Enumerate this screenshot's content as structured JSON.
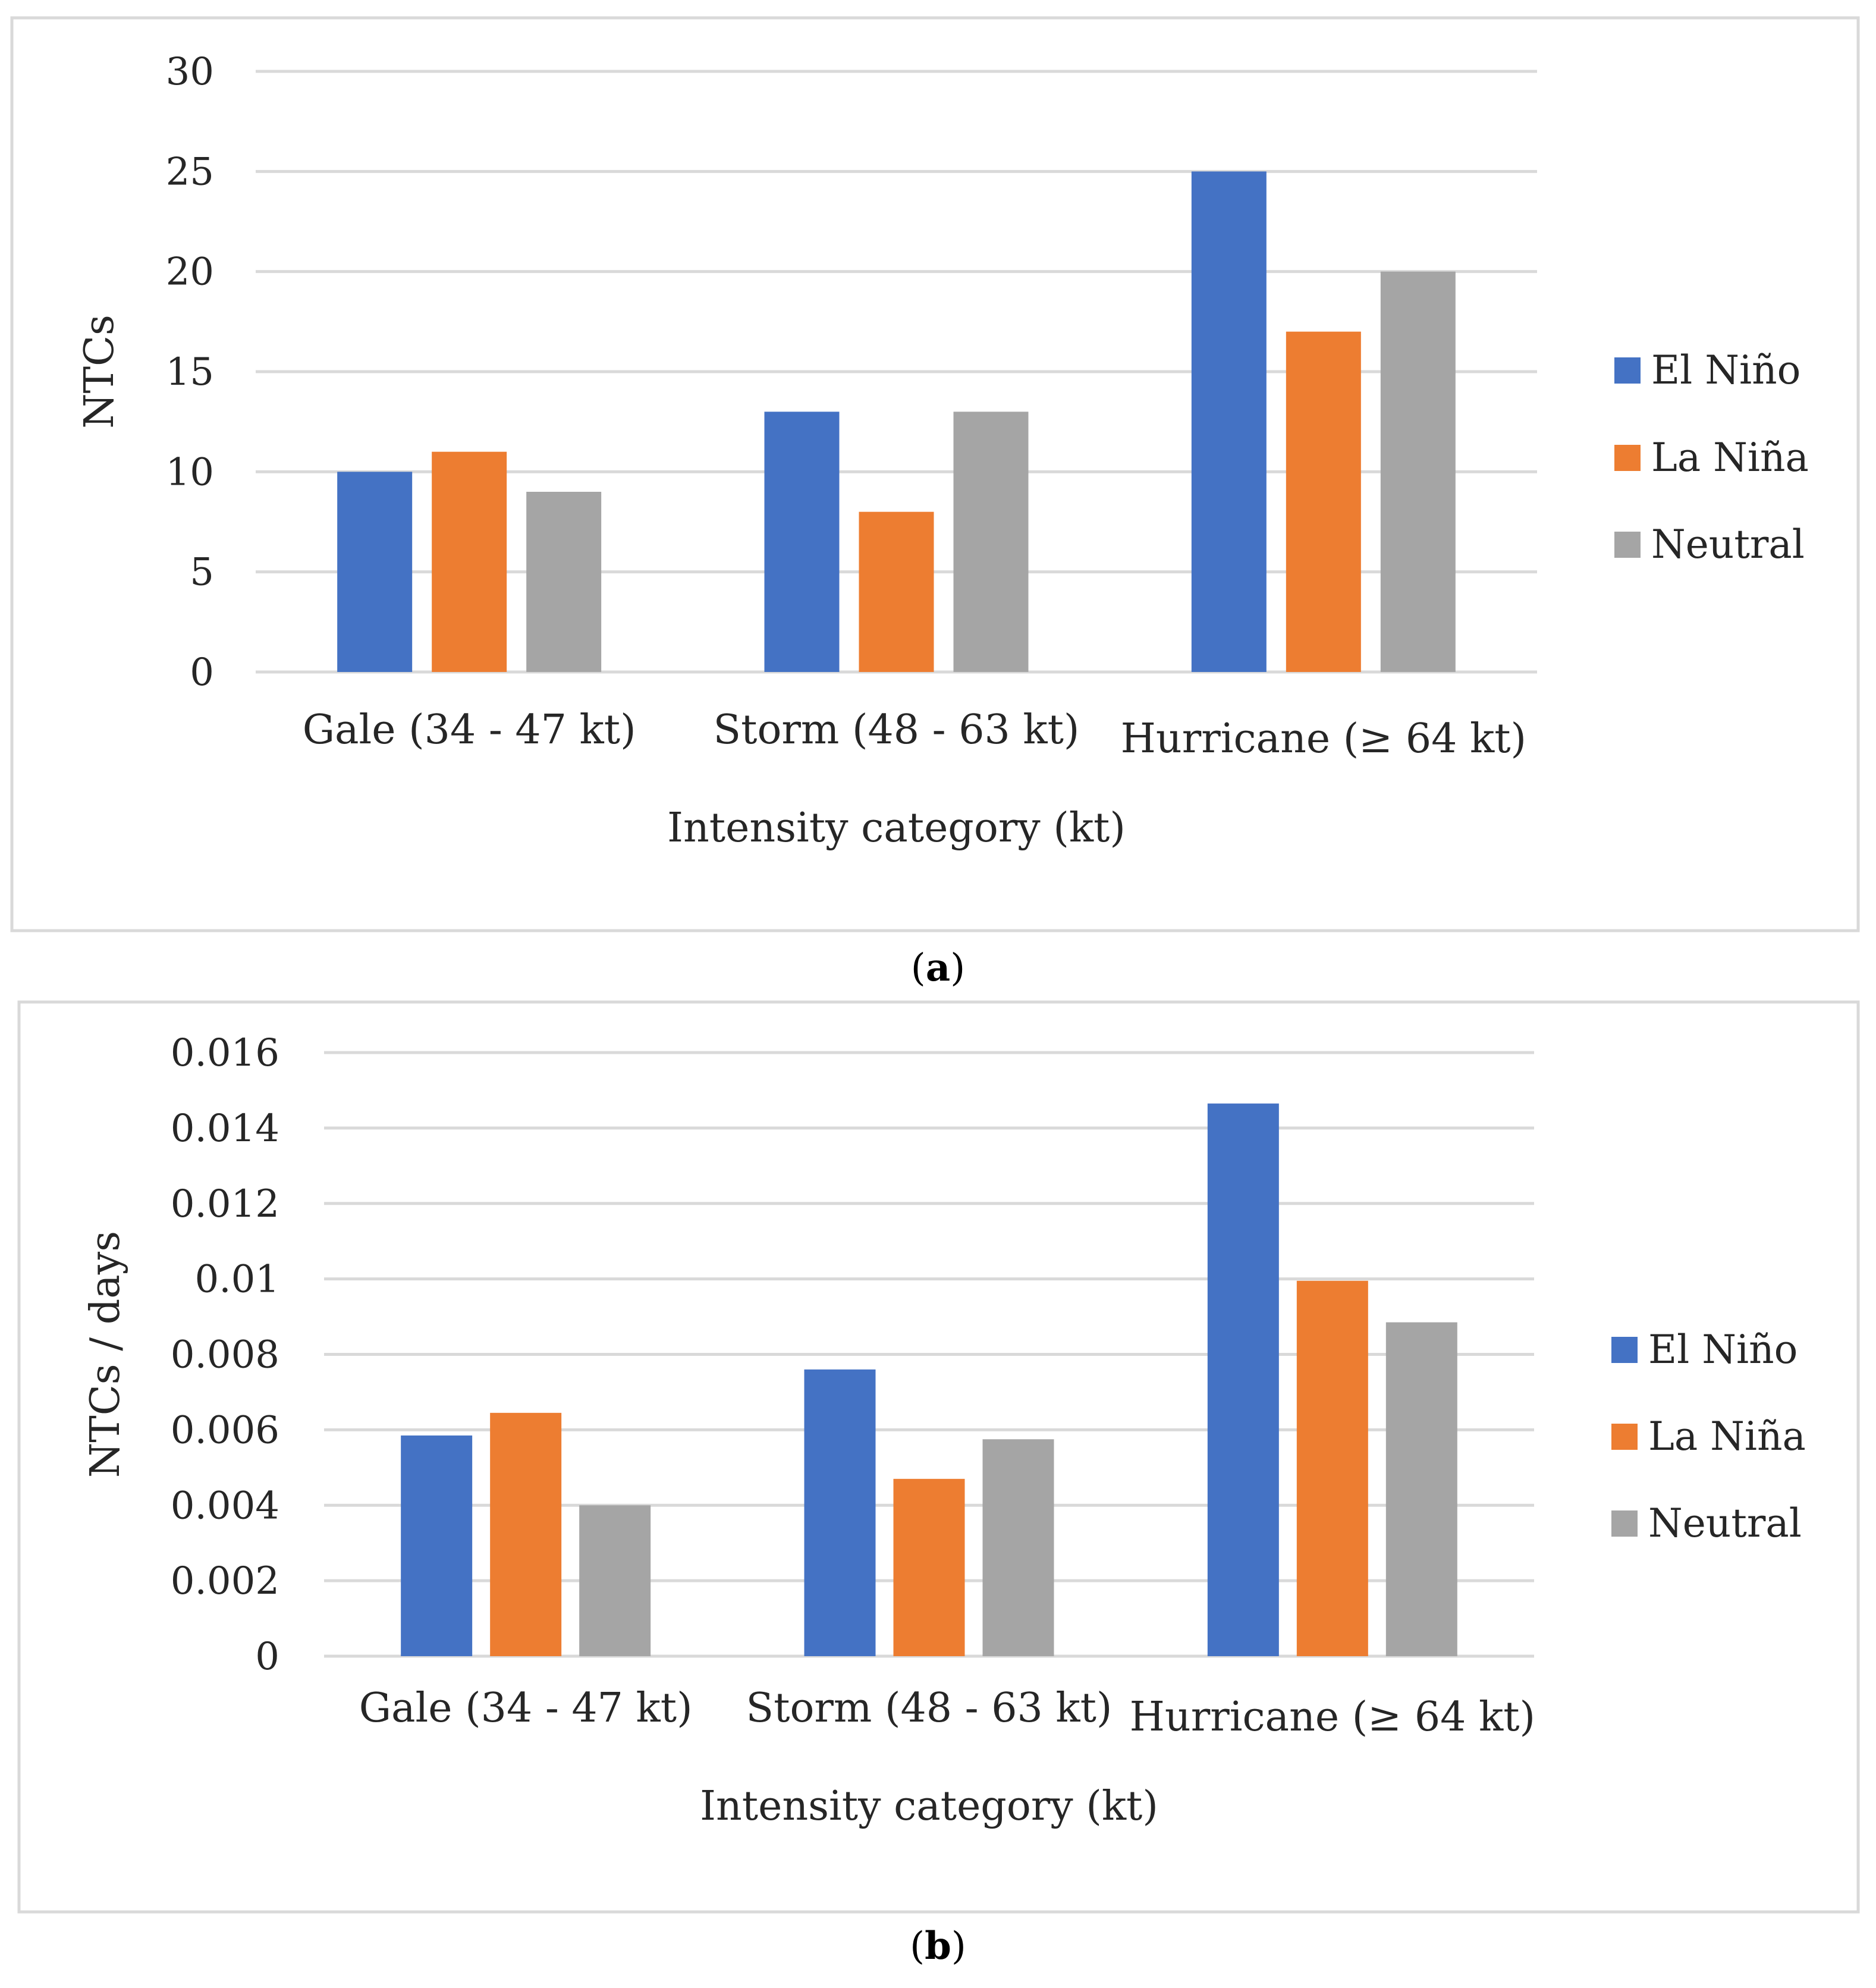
{
  "colors": {
    "el_nino": "#4472C4",
    "la_nina": "#ED7D31",
    "neutral": "#A5A5A5",
    "grid": "#D9D9D9",
    "border": "#D9D9D9"
  },
  "chart_data": [
    {
      "type": "bar",
      "panel_label": "a",
      "categories": [
        "Gale (34 - 47 kt)",
        "Storm (48 - 63 kt)",
        "Hurricane (≥  64 kt)"
      ],
      "series": [
        {
          "name": "El Niño",
          "color": "#4472C4",
          "values": [
            10,
            13,
            25
          ]
        },
        {
          "name": "La Niña",
          "color": "#ED7D31",
          "values": [
            11,
            8,
            17
          ]
        },
        {
          "name": "Neutral",
          "color": "#A5A5A5",
          "values": [
            9,
            13,
            20
          ]
        }
      ],
      "xlabel": "Intensity category (kt)",
      "ylabel": "NTCs",
      "ylim": [
        0,
        30
      ],
      "yticks": [
        "0",
        "5",
        "10",
        "15",
        "20",
        "25",
        "30"
      ],
      "grid": true,
      "legend": "right"
    },
    {
      "type": "bar",
      "panel_label": "b",
      "categories": [
        "Gale (34 - 47 kt)",
        "Storm (48 - 63 kt)",
        "Hurricane (≥  64 kt)"
      ],
      "series": [
        {
          "name": "El Niño",
          "color": "#4472C4",
          "values": [
            0.00585,
            0.0076,
            0.01465
          ]
        },
        {
          "name": "La Niña",
          "color": "#ED7D31",
          "values": [
            0.00645,
            0.0047,
            0.00995
          ]
        },
        {
          "name": "Neutral",
          "color": "#A5A5A5",
          "values": [
            0.004,
            0.00575,
            0.00885
          ]
        }
      ],
      "xlabel": "Intensity category (kt)",
      "ylabel": "NTCs / days",
      "ylim": [
        0,
        0.016
      ],
      "yticks": [
        "0",
        "0.002",
        "0.004",
        "0.006",
        "0.008",
        "0.01",
        "0.012",
        "0.014",
        "0.016"
      ],
      "grid": true,
      "legend": "right"
    }
  ]
}
